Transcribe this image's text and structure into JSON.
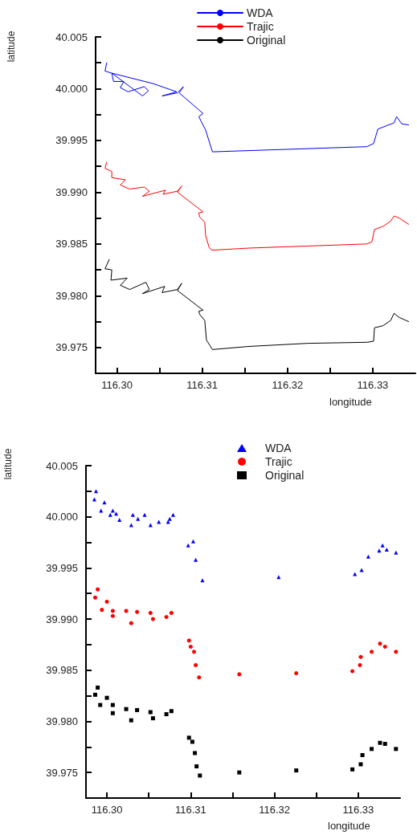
{
  "chart_data": [
    {
      "type": "line",
      "xlabel": "longitude",
      "ylabel": "latitude",
      "legend": "top",
      "grid": false,
      "xlim": [
        116.2975,
        116.335
      ],
      "ylim": [
        39.9725,
        40.005
      ],
      "xticks": [
        {
          "value": 116.3,
          "label": "116.30"
        },
        {
          "value": 116.305,
          "label": null
        },
        116.31,
        {
          "value": 116.315,
          "label": null
        },
        116.32,
        {
          "value": 116.325,
          "label": null
        },
        116.33
      ],
      "yticks": [
        {
          "value": 39.975,
          "label": "39.975"
        },
        {
          "value": 39.9775,
          "label": null
        },
        {
          "value": 39.98,
          "label": "39.980"
        },
        {
          "value": 39.9825,
          "label": null
        },
        {
          "value": 39.985,
          "label": "39.985"
        },
        {
          "value": 39.9875,
          "label": null
        },
        {
          "value": 39.99,
          "label": "39.990"
        },
        {
          "value": 39.9925,
          "label": null
        },
        {
          "value": 39.995,
          "label": "39.995"
        },
        {
          "value": 39.9975,
          "label": null
        },
        {
          "value": 40.0,
          "label": "40.000"
        },
        {
          "value": 40.0025,
          "label": null
        },
        {
          "value": 40.005,
          "label": "40.005"
        }
      ],
      "series": [
        {
          "name": "WDA",
          "color": "#0000ff",
          "x": [
            116.2988,
            116.2986,
            116.2994,
            116.2996,
            116.3008,
            116.3004,
            116.3013,
            116.3032,
            116.3037,
            116.303,
            116.2994,
            116.3042,
            116.307,
            116.3053,
            116.3071,
            116.3078,
            116.3073,
            116.3101,
            116.3096,
            116.3104,
            116.3112,
            116.3293,
            116.3301,
            116.3306,
            116.3325,
            116.3328,
            116.3334,
            116.3342
          ],
          "values": [
            40.0025,
            40.0017,
            40.0015,
            40.0007,
            40.0007,
            40.0001,
            39.9997,
            40.0002,
            39.9998,
            39.9993,
            40.0015,
            40.0005,
            39.9997,
            39.9993,
            39.9996,
            40.0002,
            39.9996,
            39.9976,
            39.9973,
            39.996,
            39.9939,
            39.9944,
            39.9947,
            39.9961,
            39.9967,
            39.9973,
            39.9966,
            39.9965
          ]
        },
        {
          "name": "Trajic",
          "color": "#ff0000",
          "x": [
            116.2988,
            116.2986,
            116.2994,
            116.2994,
            116.301,
            116.3004,
            116.3015,
            116.3032,
            116.3038,
            116.303,
            116.3057,
            116.3054,
            116.3071,
            116.3076,
            116.3071,
            116.3101,
            116.3096,
            116.3097,
            116.3103,
            116.3104,
            116.3108,
            116.3111,
            116.3155,
            116.3224,
            116.3293,
            116.3299,
            116.3302,
            116.3312,
            116.3321,
            116.3325,
            116.3331,
            116.3342
          ],
          "values": [
            39.9929,
            39.9923,
            39.992,
            39.9914,
            39.9912,
            39.9907,
            39.9903,
            39.9905,
            39.9901,
            39.9896,
            39.9902,
            39.9898,
            39.9901,
            39.9906,
            39.99,
            39.9881,
            39.988,
            39.9876,
            39.9871,
            39.9858,
            39.9847,
            39.9844,
            39.9846,
            39.9848,
            39.985,
            39.9852,
            39.9864,
            39.9867,
            39.9872,
            39.9877,
            39.9875,
            39.9869
          ]
        },
        {
          "name": "Original",
          "color": "#000000",
          "x": [
            116.2991,
            116.2986,
            116.2994,
            116.2993,
            116.3012,
            116.3004,
            116.3015,
            116.3034,
            116.3038,
            116.303,
            116.3056,
            116.3053,
            116.3071,
            116.3076,
            116.3071,
            116.3101,
            116.3096,
            116.3097,
            116.3103,
            116.3105,
            116.3109,
            116.3112,
            116.3155,
            116.3224,
            116.3293,
            116.3301,
            116.3302,
            116.3312,
            116.3321,
            116.3325,
            116.3331,
            116.3342
          ],
          "values": [
            39.9835,
            39.9826,
            39.9825,
            39.9815,
            39.9817,
            39.981,
            39.9806,
            39.9813,
            39.9806,
            39.9802,
            39.9809,
            39.9803,
            39.9806,
            39.9812,
            39.9805,
            39.9786,
            39.9785,
            39.9782,
            39.9776,
            39.9757,
            39.9752,
            39.9748,
            39.9751,
            39.9754,
            39.9755,
            39.9756,
            39.9769,
            39.9771,
            39.9776,
            39.9783,
            39.9779,
            39.9775
          ]
        }
      ]
    },
    {
      "type": "scatter",
      "xlabel": "longitude",
      "ylabel": "latitude",
      "legend": "top",
      "grid": false,
      "xlim": [
        116.2975,
        116.335
      ],
      "ylim": [
        39.9725,
        40.005
      ],
      "xticks": [
        {
          "value": 116.3,
          "label": "116.30"
        },
        {
          "value": 116.305,
          "label": null
        },
        116.31,
        {
          "value": 116.315,
          "label": null
        },
        116.32,
        {
          "value": 116.325,
          "label": null
        },
        116.33
      ],
      "yticks": [
        {
          "value": 39.975,
          "label": "39.975"
        },
        {
          "value": 39.9775,
          "label": null
        },
        {
          "value": 39.98,
          "label": "39.980"
        },
        {
          "value": 39.9825,
          "label": null
        },
        {
          "value": 39.985,
          "label": "39.985"
        },
        {
          "value": 39.9875,
          "label": null
        },
        {
          "value": 39.99,
          "label": "39.990"
        },
        {
          "value": 39.9925,
          "label": null
        },
        {
          "value": 39.995,
          "label": "39.995"
        },
        {
          "value": 39.9975,
          "label": null
        },
        {
          "value": 40.0,
          "label": "40.000"
        },
        {
          "value": 40.0025,
          "label": null
        },
        {
          "value": 40.005,
          "label": "40.005"
        }
      ],
      "series": [
        {
          "name": "WDA",
          "color": "#0000ff",
          "marker": "triangle",
          "x": [
            116.2987,
            116.2985,
            116.2997,
            116.2993,
            116.3004,
            116.3007,
            116.3011,
            116.3015,
            116.3029,
            116.3031,
            116.3037,
            116.3045,
            116.3052,
            116.3062,
            116.3073,
            116.3075,
            116.3079,
            116.3097,
            116.3103,
            116.3106,
            116.3114,
            116.3205,
            116.3296,
            116.3304,
            116.3312,
            116.3325,
            116.3329,
            116.3334,
            116.3345
          ],
          "values": [
            40.0025,
            40.0017,
            40.0014,
            40.0006,
            40.0002,
            40.0006,
            40.0003,
            39.9997,
            39.9992,
            40.0002,
            39.9998,
            40.0002,
            39.9992,
            39.9995,
            39.9995,
            39.9998,
            40.0002,
            39.9972,
            39.9976,
            39.9958,
            39.9938,
            39.9941,
            39.9944,
            39.9948,
            39.9961,
            39.9967,
            39.9972,
            39.9968,
            39.9965
          ]
        },
        {
          "name": "Trajic",
          "color": "#ff0000",
          "marker": "circle",
          "x": [
            116.2989,
            116.2986,
            116.3,
            116.2994,
            116.3007,
            116.3007,
            116.3023,
            116.3036,
            116.3029,
            116.3052,
            116.3055,
            116.3071,
            116.3077,
            116.3098,
            116.31,
            116.3104,
            116.3106,
            116.311,
            116.3158,
            116.3226,
            116.3293,
            116.3302,
            116.3303,
            116.3316,
            116.3326,
            116.3332,
            116.3345
          ],
          "values": [
            39.9929,
            39.9921,
            39.9917,
            39.9909,
            39.9908,
            39.9903,
            39.9908,
            39.9907,
            39.9896,
            39.9906,
            39.99,
            39.9902,
            39.9906,
            39.9879,
            39.9873,
            39.9868,
            39.9855,
            39.9843,
            39.9846,
            39.9847,
            39.9849,
            39.9855,
            39.9863,
            39.9868,
            39.9876,
            39.9873,
            39.9868
          ]
        },
        {
          "name": "Original",
          "color": "#000000",
          "marker": "square",
          "x": [
            116.2989,
            116.2986,
            116.3,
            116.2992,
            116.3007,
            116.3007,
            116.3023,
            116.3036,
            116.3029,
            116.3052,
            116.3055,
            116.3071,
            116.3077,
            116.3098,
            116.3102,
            116.3105,
            116.3107,
            116.3111,
            116.3158,
            116.3226,
            116.3293,
            116.3303,
            116.3305,
            116.3316,
            116.3326,
            116.3332,
            116.3345
          ],
          "values": [
            39.9833,
            39.9826,
            39.9823,
            39.9816,
            39.9816,
            39.9808,
            39.9812,
            39.9811,
            39.9801,
            39.9809,
            39.9803,
            39.9807,
            39.981,
            39.9784,
            39.978,
            39.9769,
            39.9756,
            39.9747,
            39.975,
            39.9752,
            39.9753,
            39.9758,
            39.9767,
            39.9773,
            39.9779,
            39.9778,
            39.9773
          ]
        }
      ]
    }
  ]
}
